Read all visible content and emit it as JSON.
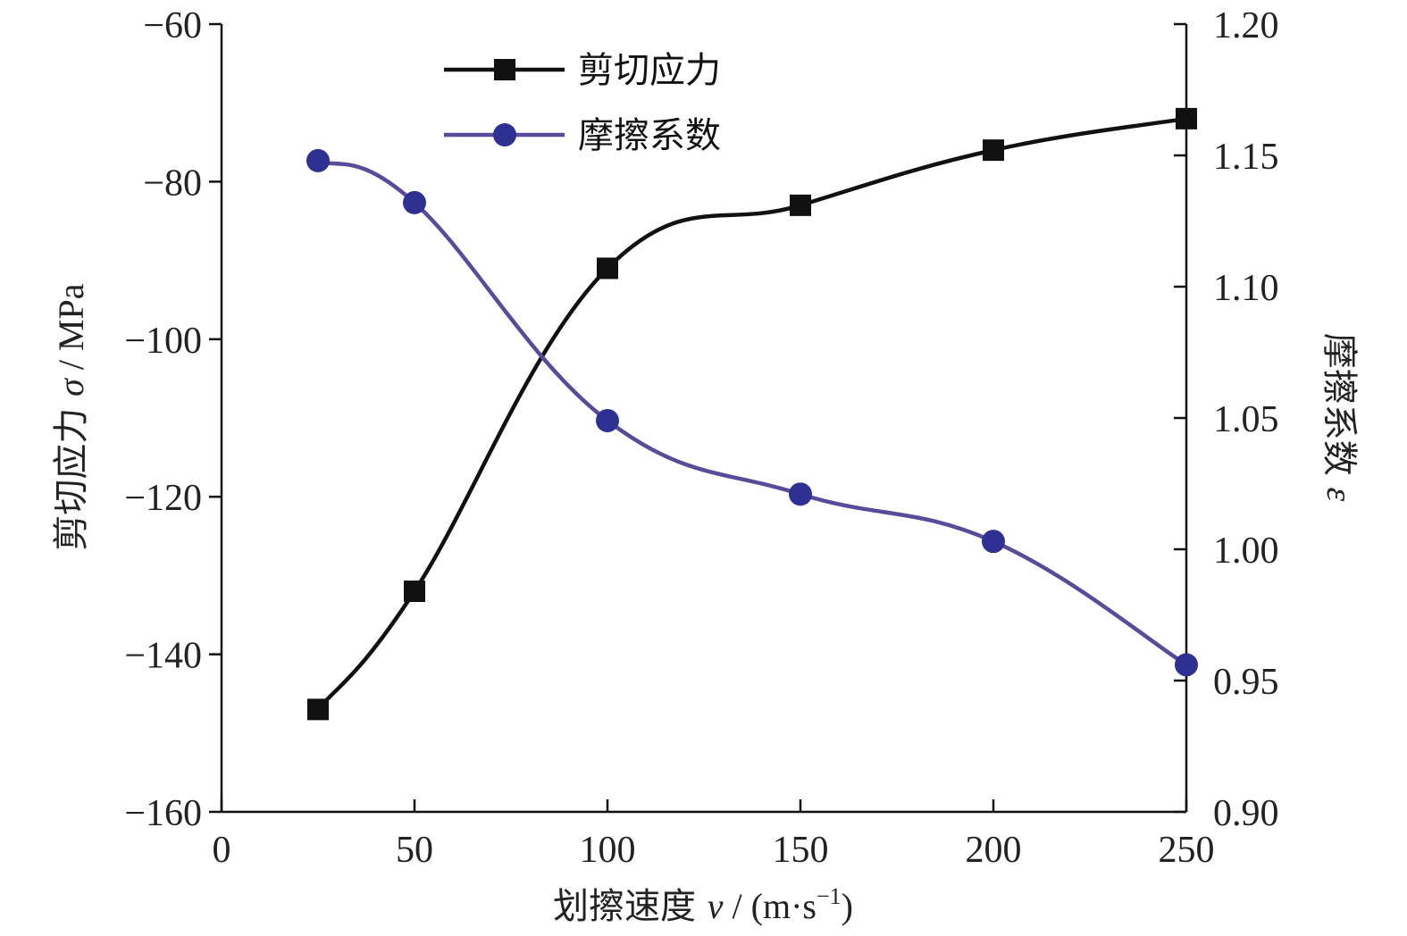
{
  "chart_data": {
    "type": "line",
    "x": [
      25,
      50,
      100,
      150,
      200,
      250
    ],
    "series": [
      {
        "name": "剪切应力",
        "axis": "left",
        "marker": "square",
        "color": "#111111",
        "values": [
          -147,
          -132,
          -91,
          -83,
          -76,
          -72
        ]
      },
      {
        "name": "摩擦系数",
        "axis": "right",
        "marker": "circle",
        "color": "#2e3092",
        "line_color": "#5a4b9a",
        "values": [
          1.148,
          1.132,
          1.049,
          1.021,
          1.003,
          0.956
        ]
      }
    ],
    "xlabel": {
      "main": "划擦速度 ",
      "var": "v",
      "unit_pre": " / (m·s",
      "sup": "−1",
      "unit_post": ")"
    },
    "ylabel_left": {
      "main": "剪切应力 ",
      "var": "σ",
      "unit": " / MPa"
    },
    "ylabel_right": {
      "main": "摩擦系数 ",
      "var": "ε"
    },
    "xlim": [
      0,
      250
    ],
    "xticks": [
      0,
      50,
      100,
      150,
      200,
      250
    ],
    "xtick_labels": [
      "0",
      "50",
      "100",
      "150",
      "200",
      "250"
    ],
    "ylim_left": [
      -160,
      -60
    ],
    "yticks_left": [
      -60,
      -80,
      -100,
      -120,
      -140,
      -160
    ],
    "ytick_labels_left": [
      "−60",
      "−80",
      "−100",
      "−120",
      "−140",
      "−160"
    ],
    "ylim_right": [
      0.9,
      1.2
    ],
    "yticks_right": [
      1.2,
      1.15,
      1.1,
      1.05,
      1.0,
      0.95,
      0.9
    ],
    "ytick_labels_right": [
      "1.20",
      "1.15",
      "1.10",
      "1.05",
      "1.00",
      "0.95",
      "0.90"
    ],
    "grid": false,
    "legend_position": "top-left"
  }
}
